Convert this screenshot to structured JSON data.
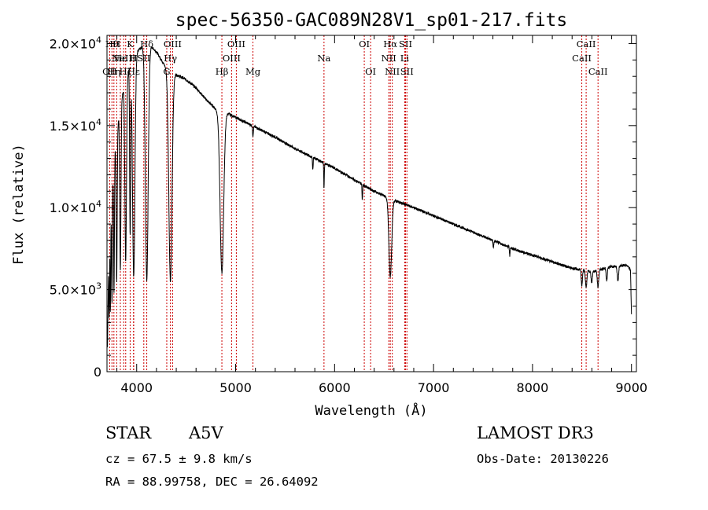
{
  "chart_data": {
    "type": "line",
    "title": "spec-56350-GAC089N28V1_sp01-217.fits",
    "xlabel": "Wavelength (Å)",
    "ylabel": "Flux (relative)",
    "xlim": [
      3700,
      9050
    ],
    "ylim": [
      0,
      20500
    ],
    "x_ticks": [
      {
        "value": 4000,
        "label": "4000"
      },
      {
        "value": 5000,
        "label": "5000"
      },
      {
        "value": 6000,
        "label": "6000"
      },
      {
        "value": 7000,
        "label": "7000"
      },
      {
        "value": 8000,
        "label": "8000"
      },
      {
        "value": 9000,
        "label": "9000"
      }
    ],
    "y_ticks": [
      {
        "value": 0,
        "mant": "0",
        "exp": ""
      },
      {
        "value": 5000,
        "mant": "5.0×10",
        "exp": "3"
      },
      {
        "value": 10000,
        "mant": "1.0×10",
        "exp": "4"
      },
      {
        "value": 15000,
        "mant": "1.5×10",
        "exp": "4"
      },
      {
        "value": 20000,
        "mant": "2.0×10",
        "exp": "4"
      }
    ],
    "continuum": [
      [
        3705,
        1500
      ],
      [
        3715,
        6000
      ],
      [
        3730,
        8500
      ],
      [
        3750,
        11000
      ],
      [
        3780,
        13500
      ],
      [
        3820,
        15500
      ],
      [
        3860,
        17000
      ],
      [
        3900,
        18000
      ],
      [
        3950,
        19000
      ],
      [
        4000,
        19500
      ],
      [
        4050,
        19800
      ],
      [
        4100,
        19900
      ],
      [
        4150,
        19800
      ],
      [
        4200,
        19500
      ],
      [
        4250,
        19000
      ],
      [
        4300,
        18500
      ],
      [
        4350,
        18300
      ],
      [
        4400,
        18100
      ],
      [
        4500,
        17800
      ],
      [
        4600,
        17300
      ],
      [
        4700,
        16600
      ],
      [
        4800,
        16000
      ],
      [
        4900,
        15800
      ],
      [
        5000,
        15500
      ],
      [
        5100,
        15200
      ],
      [
        5200,
        14900
      ],
      [
        5400,
        14300
      ],
      [
        5600,
        13600
      ],
      [
        5800,
        13000
      ],
      [
        6000,
        12400
      ],
      [
        6200,
        11700
      ],
      [
        6400,
        11000
      ],
      [
        6600,
        10450
      ],
      [
        6800,
        10000
      ],
      [
        7000,
        9500
      ],
      [
        7200,
        9000
      ],
      [
        7400,
        8500
      ],
      [
        7600,
        8000
      ],
      [
        7800,
        7500
      ],
      [
        8000,
        7100
      ],
      [
        8200,
        6700
      ],
      [
        8400,
        6300
      ],
      [
        8600,
        6100
      ],
      [
        8800,
        6400
      ],
      [
        8950,
        6500
      ],
      [
        8990,
        6200
      ],
      [
        9000,
        3500
      ]
    ],
    "absorption": [
      {
        "x": 3722,
        "depth": 0.55,
        "width": 3
      },
      {
        "x": 3734,
        "depth": 0.6,
        "width": 3
      },
      {
        "x": 3750,
        "depth": 0.62,
        "width": 4
      },
      {
        "x": 3771,
        "depth": 0.62,
        "width": 4
      },
      {
        "x": 3798,
        "depth": 0.62,
        "width": 5
      },
      {
        "x": 3835,
        "depth": 0.62,
        "width": 6
      },
      {
        "x": 3889,
        "depth": 0.62,
        "width": 8
      },
      {
        "x": 3934,
        "depth": 0.55,
        "width": 5
      },
      {
        "x": 3970,
        "depth": 0.7,
        "width": 12
      },
      {
        "x": 4102,
        "depth": 0.72,
        "width": 14
      },
      {
        "x": 4341,
        "depth": 0.7,
        "width": 16
      },
      {
        "x": 4861,
        "depth": 0.62,
        "width": 18
      },
      {
        "x": 5175,
        "depth": 0.04,
        "width": 4
      },
      {
        "x": 5780,
        "depth": 0.06,
        "width": 3
      },
      {
        "x": 5893,
        "depth": 0.12,
        "width": 3
      },
      {
        "x": 6280,
        "depth": 0.08,
        "width": 3
      },
      {
        "x": 6563,
        "depth": 0.45,
        "width": 14
      },
      {
        "x": 7605,
        "depth": 0.05,
        "width": 4
      },
      {
        "x": 7770,
        "depth": 0.07,
        "width": 3
      },
      {
        "x": 8498,
        "depth": 0.15,
        "width": 6
      },
      {
        "x": 8542,
        "depth": 0.17,
        "width": 7
      },
      {
        "x": 8598,
        "depth": 0.12,
        "width": 6
      },
      {
        "x": 8662,
        "depth": 0.17,
        "width": 7
      },
      {
        "x": 8750,
        "depth": 0.12,
        "width": 6
      },
      {
        "x": 8863,
        "depth": 0.14,
        "width": 7
      }
    ],
    "line_color": "#000000",
    "marker_color": "#cc0000",
    "lines": [
      {
        "wave": 3727,
        "label": "OII",
        "row": 2
      },
      {
        "wave": 3750,
        "label": "Hθ",
        "row": 0
      },
      {
        "wave": 3770,
        "label": "Hη",
        "row": 2
      },
      {
        "wave": 3798,
        "label": "H",
        "row": 0
      },
      {
        "wave": 3835,
        "label": "Hε",
        "row": 1
      },
      {
        "wave": 3869,
        "label": "NeIII",
        "row": 1
      },
      {
        "wave": 3889,
        "label": "Hζ",
        "row": 2
      },
      {
        "wave": 3934,
        "label": "K",
        "row": 0
      },
      {
        "wave": 3968,
        "label": "H",
        "row": 1
      },
      {
        "wave": 3970,
        "label": "Hε",
        "row": 2
      },
      {
        "wave": 4072,
        "label": "SII",
        "row": 1
      },
      {
        "wave": 4102,
        "label": "Hδ",
        "row": 0
      },
      {
        "wave": 4304,
        "label": "G",
        "row": 2
      },
      {
        "wave": 4341,
        "label": "Hγ",
        "row": 1
      },
      {
        "wave": 4363,
        "label": "OIII",
        "row": 0
      },
      {
        "wave": 4861,
        "label": "Hβ",
        "row": 2
      },
      {
        "wave": 4959,
        "label": "OIII",
        "row": 1
      },
      {
        "wave": 5007,
        "label": "OIII",
        "row": 0
      },
      {
        "wave": 5175,
        "label": "Mg",
        "row": 2
      },
      {
        "wave": 5893,
        "label": "Na",
        "row": 1
      },
      {
        "wave": 6300,
        "label": "OI",
        "row": 0
      },
      {
        "wave": 6364,
        "label": "OI",
        "row": 2
      },
      {
        "wave": 6548,
        "label": "NII",
        "row": 1
      },
      {
        "wave": 6563,
        "label": "Hα",
        "row": 0
      },
      {
        "wave": 6583,
        "label": "NII",
        "row": 2
      },
      {
        "wave": 6708,
        "label": "Li",
        "row": 1
      },
      {
        "wave": 6717,
        "label": "SII",
        "row": 0
      },
      {
        "wave": 6731,
        "label": "SII",
        "row": 2
      },
      {
        "wave": 8498,
        "label": "CaII",
        "row": 1
      },
      {
        "wave": 8542,
        "label": "CaII",
        "row": 0
      },
      {
        "wave": 8662,
        "label": "CaII",
        "row": 2
      }
    ]
  },
  "info": {
    "object_class": "STAR",
    "subclass": "A5V",
    "survey": "LAMOST DR3",
    "cz": "cz = 67.5 ± 9.8 km/s",
    "coords": "RA =  88.99758, DEC =  26.64092",
    "obs_date": "Obs-Date: 20130226"
  }
}
